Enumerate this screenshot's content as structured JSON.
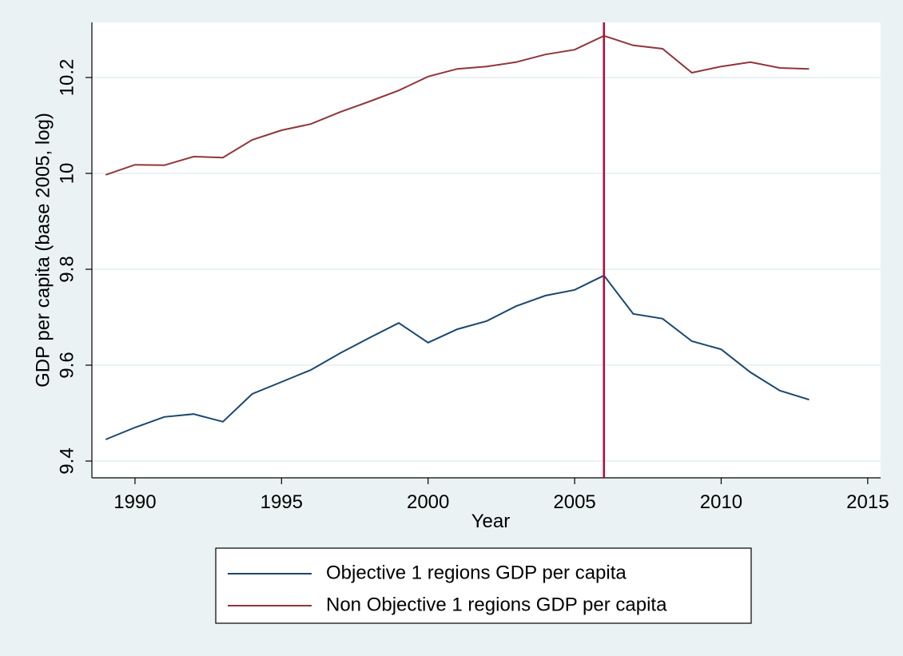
{
  "chart_data": {
    "type": "line",
    "x_label": "Year",
    "y_label": "GDP per capita (base 2005, log)",
    "x": [
      1989,
      1990,
      1991,
      1992,
      1993,
      1994,
      1995,
      1996,
      1997,
      1998,
      1999,
      2000,
      2001,
      2002,
      2003,
      2004,
      2005,
      2006,
      2007,
      2008,
      2009,
      2010,
      2011,
      2012,
      2013
    ],
    "series": [
      {
        "name": "Objective 1 regions GDP per capita",
        "color": "#1a476f",
        "values": [
          9.445,
          9.47,
          9.492,
          9.498,
          9.482,
          9.54,
          9.565,
          9.59,
          9.625,
          9.657,
          9.688,
          9.647,
          9.675,
          9.692,
          9.723,
          9.745,
          9.757,
          9.787,
          9.707,
          9.697,
          9.65,
          9.633,
          9.585,
          9.547,
          9.528
        ]
      },
      {
        "name": "Non Objective 1 regions GDP per capita",
        "color": "#90353b",
        "values": [
          9.997,
          10.018,
          10.017,
          10.035,
          10.033,
          10.07,
          10.09,
          10.103,
          10.128,
          10.15,
          10.173,
          10.202,
          10.218,
          10.223,
          10.232,
          10.248,
          10.258,
          10.287,
          10.267,
          10.26,
          10.21,
          10.223,
          10.232,
          10.22,
          10.218
        ]
      }
    ],
    "xlim": [
      1988.53,
      2015.44
    ],
    "xticks": [
      1990,
      1995,
      2000,
      2005,
      2010,
      2015
    ],
    "ylim": [
      9.365,
      10.315
    ],
    "yticks": [
      9.4,
      9.6,
      9.8,
      10,
      10.2
    ],
    "grid": true,
    "vline": {
      "x": 2006,
      "color": "#c10534"
    },
    "legend": "bottom"
  }
}
